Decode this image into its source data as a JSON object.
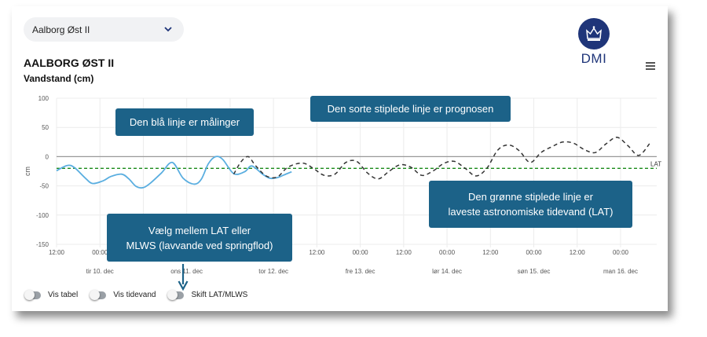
{
  "station_select": {
    "value": "Aalborg Øst II",
    "icon": "chevron-down-icon"
  },
  "logo": {
    "text": "DMI",
    "icon": "crown-icon",
    "color": "#1f3579"
  },
  "header": {
    "title": "AALBORG ØST II",
    "subtitle": "Vandstand (cm)"
  },
  "menu": {
    "icon": "hamburger-icon"
  },
  "callouts": {
    "measurements": "Den blå linje er målinger",
    "forecast": "Den sorte stiplede linje er prognosen",
    "lat_line_1": "Den grønne stiplede linje er",
    "lat_line_2": "laveste astronomiske tidevand (LAT)",
    "choose_1": "Vælg mellem LAT eller",
    "choose_2": "MLWS (lavvande ved springflod)"
  },
  "toggles": [
    {
      "label": "Vis tabel",
      "on": false
    },
    {
      "label": "Vis tidevand",
      "on": false
    },
    {
      "label": "Skift LAT/MLWS",
      "on": false
    }
  ],
  "chart_data": {
    "type": "line",
    "ylabel": "cm",
    "ylim": [
      -150,
      100
    ],
    "yticks": [
      100,
      50,
      0,
      -50,
      -100,
      -150
    ],
    "xlim_hours": [
      0,
      166
    ],
    "x_tick_labels": [
      "12:00",
      "00:00",
      "12:00",
      "00:00",
      "12:00",
      "00:00",
      "12:00",
      "00:00",
      "12:00",
      "00:00",
      "12:00",
      "00:00",
      "12:00",
      "00:00"
    ],
    "day_labels": [
      "tir 10. dec",
      "ons 11. dec",
      "tor 12. dec",
      "fre 13. dec",
      "lør 14. dec",
      "søn 15. dec",
      "man 16. dec"
    ],
    "lat": {
      "label": "LAT",
      "value": -20,
      "color": "#1a8a1a"
    },
    "colors": {
      "measurements": "#5aaee0",
      "forecast": "#333333",
      "zero": "#999999"
    },
    "series": [
      {
        "style": "solid",
        "x": [
          0,
          3,
          5,
          8,
          10,
          13,
          15,
          18,
          20,
          22,
          24,
          26,
          29,
          32,
          35,
          38,
          40,
          42,
          44,
          46,
          49,
          52,
          54,
          57,
          59,
          61,
          63,
          65
        ],
        "y": [
          -24,
          -15,
          -19,
          -37,
          -46,
          -41,
          -34,
          -30,
          -38,
          -51,
          -53,
          -45,
          -28,
          -10,
          -37,
          -47,
          -39,
          -12,
          0,
          -5,
          -29,
          -26,
          -16,
          -30,
          -37,
          -36,
          -31,
          -26
        ]
      },
      {
        "style": "dashed",
        "x": [
          49,
          51,
          53,
          55,
          58,
          61,
          64,
          68,
          71,
          74,
          77,
          80,
          83,
          86,
          89,
          92,
          95,
          98,
          101,
          104,
          107,
          110,
          113,
          116,
          119,
          122,
          125,
          128,
          131,
          134,
          137,
          140,
          143,
          146,
          149,
          152,
          155,
          158,
          161,
          164
        ],
        "y": [
          -30,
          -9,
          0,
          -15,
          -33,
          -35,
          -18,
          -11,
          -20,
          -32,
          -30,
          -10,
          -8,
          -28,
          -38,
          -25,
          -14,
          -18,
          -32,
          -25,
          -12,
          -8,
          -20,
          -33,
          -20,
          11,
          20,
          10,
          -10,
          7,
          17,
          25,
          23,
          12,
          7,
          22,
          33,
          19,
          2,
          22
        ]
      }
    ]
  }
}
